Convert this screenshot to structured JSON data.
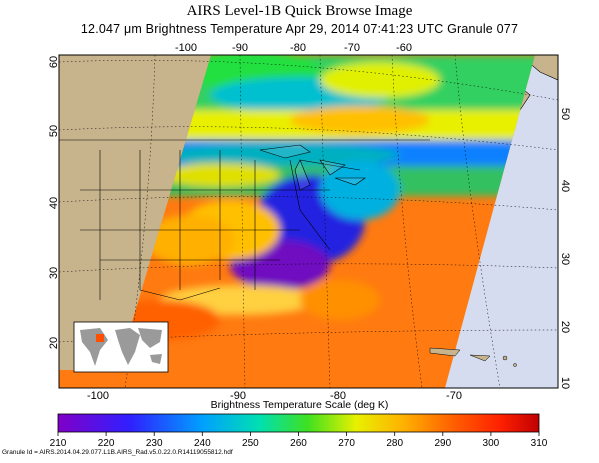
{
  "header": {
    "title": "AIRS Level-1B Quick Browse Image",
    "subtitle": "12.047 μm Brightness Temperature   Apr 29, 2014 07:41:23 UTC   Granule 077"
  },
  "map": {
    "top_lon_labels": [
      "-100",
      "-90",
      "-80",
      "-70",
      "-60"
    ],
    "bottom_lon_labels": [
      "-100",
      "-90",
      "-80",
      "-70"
    ],
    "left_lat_labels": [
      "60",
      "50",
      "40",
      "30",
      "20"
    ],
    "right_lat_labels": [
      "50",
      "40",
      "30",
      "20",
      "10"
    ]
  },
  "colorbar": {
    "title": "Brightness Temperature Scale (deg K)",
    "ticks": [
      "210",
      "220",
      "230",
      "240",
      "250",
      "260",
      "270",
      "280",
      "290",
      "300",
      "310"
    ],
    "range": [
      210,
      310
    ]
  },
  "footer": {
    "granule_id": "Granule Id = AIRS.2014.04.29.077.L1B.AIRS_Rad.v5.0.22.0.R14119055812.hdf"
  },
  "colors": {
    "land": "#c8b48c",
    "ocean": "#d5dcf0",
    "frame": "#000000"
  }
}
